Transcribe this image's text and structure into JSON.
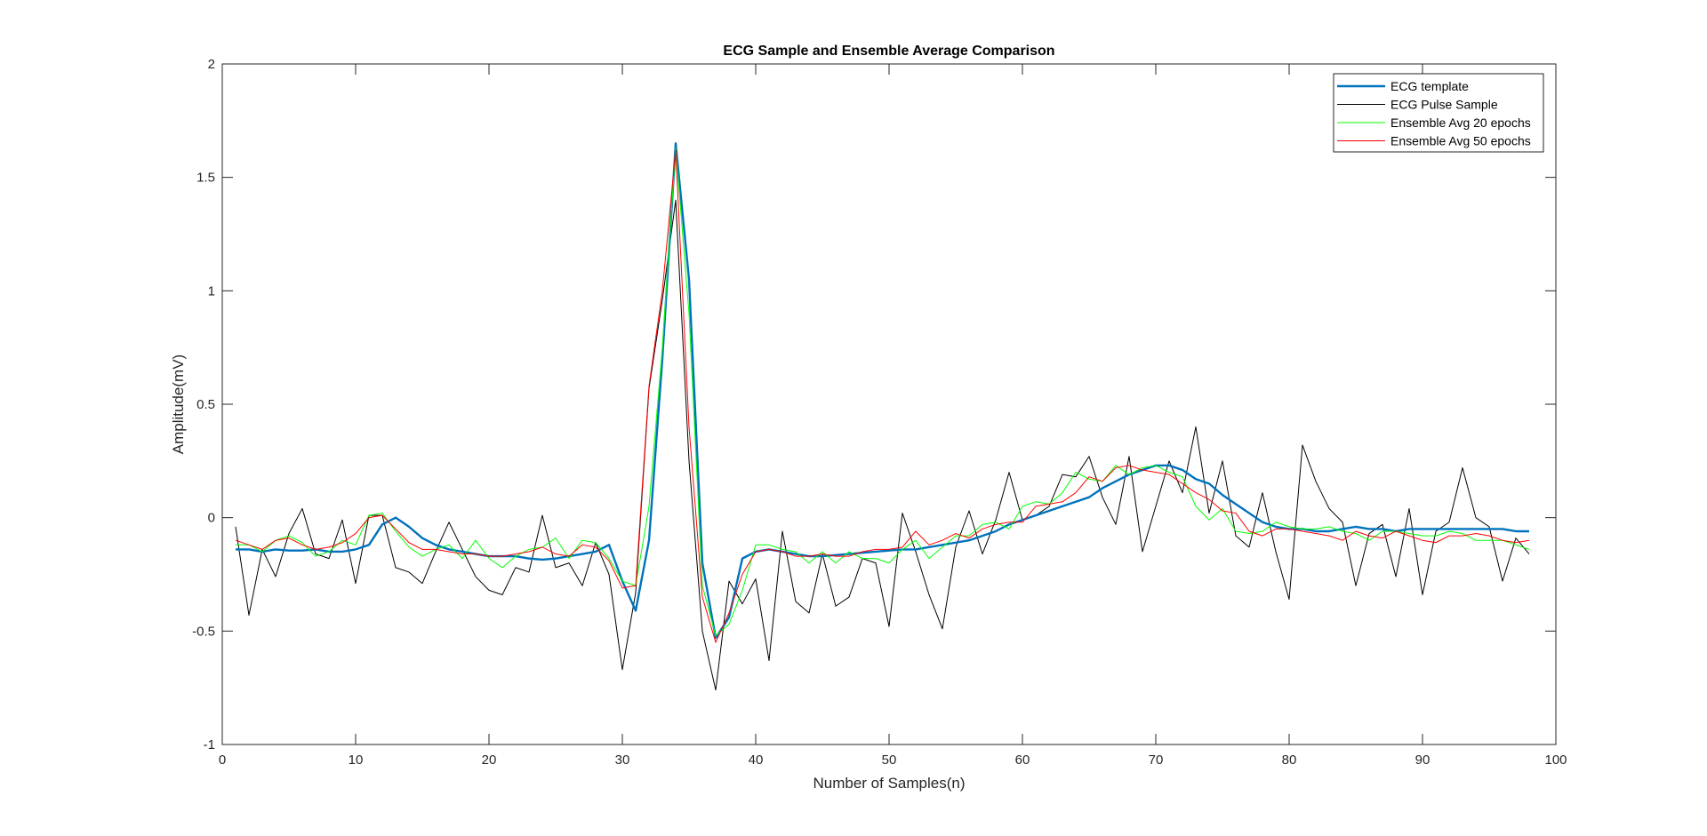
{
  "chart_data": {
    "type": "line",
    "title": "ECG Sample and Ensemble Average Comparison",
    "xlabel": "Number of Samples(n)",
    "ylabel": "Amplitude(mV)",
    "xlim": [
      0,
      100
    ],
    "ylim": [
      -1,
      2
    ],
    "xticks": [
      0,
      10,
      20,
      30,
      40,
      50,
      60,
      70,
      80,
      90,
      100
    ],
    "xtick_labels": [
      "0",
      "10",
      "20",
      "30",
      "40",
      "50",
      "60",
      "70",
      "80",
      "90",
      "100"
    ],
    "yticks": [
      -1,
      -0.5,
      0,
      0.5,
      1,
      1.5,
      2
    ],
    "ytick_labels": [
      "-1",
      "-0.5",
      "0",
      "0.5",
      "1",
      "1.5",
      "2"
    ],
    "grid": false,
    "legend_position": "top-right",
    "x_start": 1,
    "series": [
      {
        "name": "ECG template",
        "color": "#0072BD",
        "line_width": 2.4,
        "values": [
          -0.14,
          -0.14,
          -0.15,
          -0.14,
          -0.145,
          -0.145,
          -0.14,
          -0.15,
          -0.15,
          -0.14,
          -0.12,
          -0.03,
          0.0,
          -0.04,
          -0.09,
          -0.12,
          -0.14,
          -0.15,
          -0.16,
          -0.17,
          -0.17,
          -0.17,
          -0.18,
          -0.185,
          -0.18,
          -0.17,
          -0.16,
          -0.15,
          -0.12,
          -0.28,
          -0.41,
          -0.1,
          0.7,
          1.65,
          1.05,
          -0.2,
          -0.53,
          -0.44,
          -0.18,
          -0.15,
          -0.14,
          -0.15,
          -0.16,
          -0.17,
          -0.17,
          -0.165,
          -0.16,
          -0.155,
          -0.15,
          -0.145,
          -0.14,
          -0.14,
          -0.13,
          -0.12,
          -0.11,
          -0.1,
          -0.08,
          -0.06,
          -0.03,
          -0.01,
          0.01,
          0.03,
          0.05,
          0.07,
          0.09,
          0.13,
          0.16,
          0.19,
          0.21,
          0.23,
          0.23,
          0.21,
          0.17,
          0.15,
          0.1,
          0.06,
          0.02,
          -0.02,
          -0.04,
          -0.05,
          -0.05,
          -0.06,
          -0.06,
          -0.05,
          -0.04,
          -0.05,
          -0.05,
          -0.06,
          -0.05,
          -0.05,
          -0.05,
          -0.05,
          -0.05,
          -0.05,
          -0.05,
          -0.05,
          -0.06,
          -0.06
        ]
      },
      {
        "name": "ECG Pulse Sample",
        "color": "#000000",
        "line_width": 1,
        "values": [
          -0.04,
          -0.43,
          -0.14,
          -0.26,
          -0.07,
          0.04,
          -0.16,
          -0.18,
          -0.01,
          -0.29,
          0.01,
          0.01,
          -0.22,
          -0.24,
          -0.29,
          -0.15,
          -0.02,
          -0.14,
          -0.26,
          -0.32,
          -0.34,
          -0.22,
          -0.24,
          0.01,
          -0.22,
          -0.2,
          -0.3,
          -0.11,
          -0.25,
          -0.67,
          -0.33,
          0.57,
          0.96,
          1.4,
          0.25,
          -0.5,
          -0.76,
          -0.28,
          -0.38,
          -0.27,
          -0.63,
          -0.06,
          -0.37,
          -0.42,
          -0.16,
          -0.39,
          -0.35,
          -0.18,
          -0.2,
          -0.48,
          0.02,
          -0.15,
          -0.34,
          -0.49,
          -0.13,
          0.03,
          -0.16,
          -0.01,
          0.2,
          -0.01,
          0.01,
          0.05,
          0.19,
          0.18,
          0.27,
          0.09,
          -0.03,
          0.27,
          -0.15,
          0.05,
          0.25,
          0.11,
          0.4,
          0.02,
          0.25,
          -0.08,
          -0.13,
          0.11,
          -0.15,
          -0.36,
          0.32,
          0.16,
          0.04,
          -0.02,
          -0.3,
          -0.07,
          -0.03,
          -0.26,
          0.04,
          -0.34,
          -0.06,
          -0.02,
          0.22,
          0.0,
          -0.04,
          -0.28,
          -0.09,
          -0.16
        ]
      },
      {
        "name": "Ensemble Avg 20 epochs",
        "color": "#00FF00",
        "line_width": 1,
        "values": [
          -0.12,
          -0.12,
          -0.15,
          -0.1,
          -0.08,
          -0.11,
          -0.17,
          -0.15,
          -0.1,
          -0.12,
          0.01,
          0.02,
          -0.06,
          -0.13,
          -0.17,
          -0.14,
          -0.12,
          -0.18,
          -0.1,
          -0.18,
          -0.22,
          -0.17,
          -0.14,
          -0.13,
          -0.09,
          -0.18,
          -0.1,
          -0.11,
          -0.18,
          -0.28,
          -0.3,
          0.05,
          0.75,
          1.63,
          0.9,
          -0.3,
          -0.52,
          -0.47,
          -0.32,
          -0.12,
          -0.12,
          -0.14,
          -0.15,
          -0.2,
          -0.15,
          -0.2,
          -0.15,
          -0.18,
          -0.18,
          -0.2,
          -0.14,
          -0.1,
          -0.18,
          -0.13,
          -0.08,
          -0.08,
          -0.03,
          -0.02,
          -0.05,
          0.05,
          0.07,
          0.06,
          0.11,
          0.2,
          0.17,
          0.16,
          0.23,
          0.19,
          0.22,
          0.23,
          0.2,
          0.18,
          0.05,
          -0.01,
          0.04,
          -0.06,
          -0.07,
          -0.06,
          -0.02,
          -0.04,
          -0.05,
          -0.05,
          -0.04,
          -0.06,
          -0.07,
          -0.1,
          -0.06,
          -0.06,
          -0.07,
          -0.08,
          -0.08,
          -0.06,
          -0.07,
          -0.1,
          -0.1,
          -0.1,
          -0.12,
          -0.14
        ]
      },
      {
        "name": "Ensemble Avg 50 epochs",
        "color": "#FF0000",
        "line_width": 1,
        "values": [
          -0.1,
          -0.12,
          -0.14,
          -0.1,
          -0.09,
          -0.12,
          -0.14,
          -0.13,
          -0.11,
          -0.07,
          0.0,
          0.01,
          -0.05,
          -0.11,
          -0.14,
          -0.14,
          -0.15,
          -0.16,
          -0.16,
          -0.17,
          -0.17,
          -0.16,
          -0.15,
          -0.13,
          -0.16,
          -0.17,
          -0.12,
          -0.13,
          -0.19,
          -0.31,
          -0.3,
          0.58,
          1.0,
          1.62,
          0.4,
          -0.35,
          -0.55,
          -0.42,
          -0.25,
          -0.15,
          -0.14,
          -0.15,
          -0.17,
          -0.17,
          -0.16,
          -0.17,
          -0.17,
          -0.15,
          -0.14,
          -0.14,
          -0.13,
          -0.06,
          -0.12,
          -0.1,
          -0.07,
          -0.09,
          -0.05,
          -0.03,
          -0.02,
          -0.02,
          0.05,
          0.06,
          0.07,
          0.11,
          0.18,
          0.16,
          0.22,
          0.23,
          0.21,
          0.2,
          0.19,
          0.15,
          0.11,
          0.08,
          0.03,
          0.02,
          -0.06,
          -0.08,
          -0.05,
          -0.05,
          -0.06,
          -0.07,
          -0.08,
          -0.1,
          -0.06,
          -0.08,
          -0.09,
          -0.06,
          -0.08,
          -0.1,
          -0.11,
          -0.08,
          -0.08,
          -0.07,
          -0.08,
          -0.1,
          -0.11,
          -0.1
        ]
      }
    ]
  }
}
